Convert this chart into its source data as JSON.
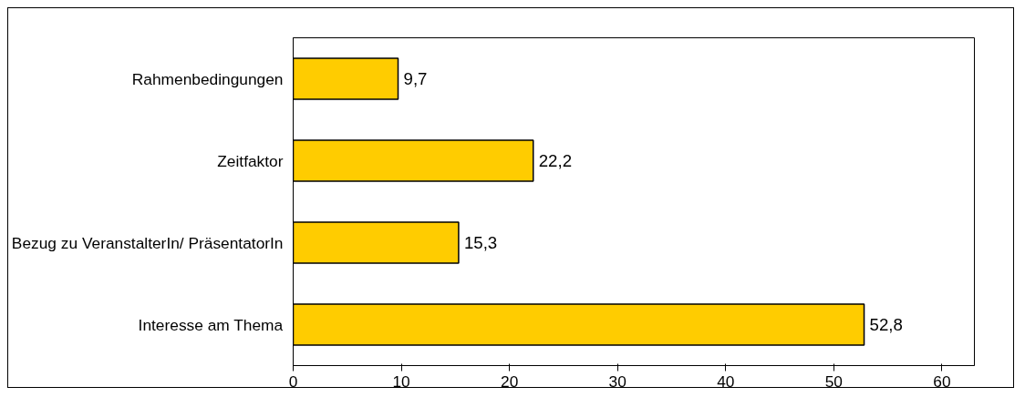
{
  "chart_data": {
    "type": "bar",
    "orientation": "horizontal",
    "categories": [
      "Rahmenbedingungen",
      "Zeitfaktor",
      "Bezug zu VeranstalterIn/ PräsentatorIn",
      "Interesse am Thema"
    ],
    "values": [
      9.7,
      22.2,
      15.3,
      52.8
    ],
    "value_labels": [
      "9,7",
      "22,2",
      "15,3",
      "52,8"
    ],
    "color": "#ffcc00",
    "xlim": [
      0,
      63
    ],
    "xticks": [
      0,
      10,
      20,
      30,
      40,
      50,
      60
    ],
    "grid": false
  }
}
